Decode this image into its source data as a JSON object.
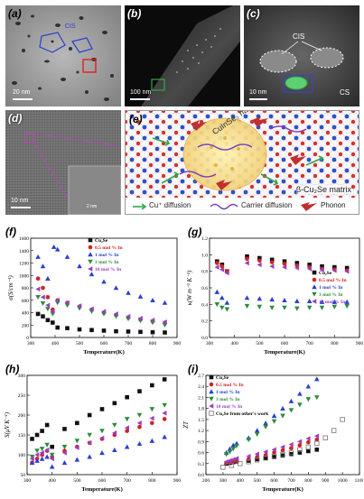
{
  "panels": {
    "a": {
      "label": "(a)",
      "scale": "20 nm",
      "region_label": "CIS"
    },
    "b": {
      "label": "(b)",
      "scale": "100 nm"
    },
    "c": {
      "label": "(c)",
      "scale": "10 nm",
      "labels": [
        "CIS",
        "CS"
      ]
    },
    "d": {
      "label": "(d)",
      "scale": "10 nm",
      "inset_scale": "2 nm"
    },
    "e": {
      "label": "(e)",
      "nanocrystal_label": "CuInSe₂ nanocrystal",
      "matrix_label": "β-Cu₂Se matrix",
      "legend": {
        "cu": "Cu⁺ diffusion",
        "carrier": "Carrier diffusion",
        "phonon": "Phonon"
      }
    },
    "f": {
      "label": "(f)"
    },
    "g": {
      "label": "(g)"
    },
    "h": {
      "label": "(h)"
    },
    "i": {
      "label": "(i)"
    }
  },
  "colors": {
    "cu2se": "#111111",
    "in05": "#d62020",
    "in1": "#2a3fd0",
    "in3": "#2e8b3e",
    "in10": "#9a3fc0",
    "other": "#777777"
  },
  "chart_data": [
    {
      "id": "f",
      "type": "scatter",
      "ylabel": "σ(S/cm⁻¹)",
      "xlabel": "Temperature(K)",
      "xlim": [
        300,
        900
      ],
      "ylim": [
        0,
        1600
      ],
      "xticks": [
        300,
        400,
        500,
        600,
        700,
        800,
        900
      ],
      "yticks": [
        0,
        200,
        400,
        600,
        800,
        1000,
        1200,
        1400,
        1600
      ],
      "legend_position": "top-right",
      "series": [
        {
          "name": "Cu₂Se",
          "key": "cu2se",
          "marker": "square",
          "x": [
            330,
            350,
            370,
            390,
            410,
            450,
            500,
            550,
            600,
            650,
            700,
            750,
            800,
            850
          ],
          "y": [
            380,
            340,
            280,
            240,
            160,
            150,
            130,
            120,
            110,
            100,
            95,
            90,
            85,
            80
          ]
        },
        {
          "name": "0.5 mol % In",
          "key": "in05",
          "marker": "circle",
          "x": [
            330,
            350,
            370,
            390,
            410,
            450,
            500,
            550,
            600,
            650,
            700,
            750,
            800,
            850
          ],
          "y": [
            950,
            800,
            650,
            450,
            600,
            560,
            500,
            450,
            400,
            360,
            320,
            290,
            260,
            240
          ]
        },
        {
          "name": "1 mol % In",
          "key": "in1",
          "marker": "triangle-up",
          "x": [
            330,
            350,
            370,
            395,
            410,
            450,
            500,
            550,
            600,
            650,
            700,
            750,
            800,
            850
          ],
          "y": [
            1300,
            1150,
            950,
            1460,
            1420,
            1300,
            1150,
            1020,
            900,
            800,
            720,
            660,
            600,
            560
          ]
        },
        {
          "name": "3 mol % In",
          "key": "in3",
          "marker": "triangle-down",
          "x": [
            330,
            350,
            370,
            390,
            410,
            450,
            500,
            550,
            600,
            650,
            700,
            750,
            800,
            850
          ],
          "y": [
            650,
            550,
            460,
            380,
            560,
            520,
            470,
            420,
            380,
            340,
            300,
            270,
            240,
            200
          ]
        },
        {
          "name": "10 mol % In",
          "key": "in10",
          "marker": "triangle-left",
          "x": [
            330,
            350,
            370,
            390,
            410,
            450,
            500,
            550,
            600,
            650,
            700,
            750,
            800,
            850
          ],
          "y": [
            780,
            650,
            520,
            420,
            600,
            560,
            510,
            460,
            420,
            380,
            340,
            310,
            280,
            250
          ]
        }
      ]
    },
    {
      "id": "g",
      "type": "scatter",
      "ylabel": "κ(W m⁻¹ K⁻¹)",
      "xlabel": "Temperature(K)",
      "xlim": [
        300,
        900
      ],
      "ylim": [
        0,
        1.2
      ],
      "xticks": [
        300,
        400,
        500,
        600,
        700,
        800,
        900
      ],
      "yticks": [
        0.0,
        0.2,
        0.4,
        0.6,
        0.8,
        1.0,
        1.2
      ],
      "legend_position": "right",
      "series": [
        {
          "name": "Cu₂Se",
          "key": "cu2se",
          "marker": "square",
          "x": [
            330,
            350,
            370,
            450,
            500,
            550,
            600,
            650,
            700,
            750,
            800,
            850
          ],
          "y": [
            0.92,
            0.88,
            0.8,
            0.98,
            0.96,
            0.94,
            0.92,
            0.9,
            0.88,
            0.86,
            0.85,
            0.84
          ]
        },
        {
          "name": "0.5 mol % In",
          "key": "in05",
          "marker": "circle",
          "x": [
            330,
            350,
            370,
            450,
            500,
            550,
            600,
            650,
            700,
            750,
            800,
            850
          ],
          "y": [
            0.9,
            0.86,
            0.8,
            0.95,
            0.93,
            0.91,
            0.89,
            0.87,
            0.85,
            0.83,
            0.82,
            0.81
          ]
        },
        {
          "name": "1 mol % In",
          "key": "in1",
          "marker": "triangle-up",
          "x": [
            330,
            350,
            370,
            450,
            500,
            550,
            600,
            650,
            700,
            750,
            800,
            850
          ],
          "y": [
            0.55,
            0.48,
            0.42,
            0.48,
            0.47,
            0.46,
            0.45,
            0.44,
            0.44,
            0.43,
            0.43,
            0.43
          ]
        },
        {
          "name": "3 mol % In",
          "key": "in3",
          "marker": "triangle-down",
          "x": [
            330,
            350,
            370,
            450,
            500,
            550,
            600,
            650,
            700,
            750,
            800,
            850
          ],
          "y": [
            0.4,
            0.36,
            0.34,
            0.38,
            0.37,
            0.36,
            0.36,
            0.35,
            0.36,
            0.36,
            0.37,
            0.38
          ]
        },
        {
          "name": "10 mol % In",
          "key": "in10",
          "marker": "triangle-left",
          "x": [
            330,
            350,
            370,
            450,
            500,
            550,
            600,
            650,
            700,
            750,
            800,
            850
          ],
          "y": [
            0.85,
            0.82,
            0.78,
            0.9,
            0.88,
            0.86,
            0.85,
            0.84,
            0.83,
            0.82,
            0.81,
            0.8
          ]
        }
      ]
    },
    {
      "id": "h",
      "type": "scatter",
      "ylabel": "S(μV K⁻¹)",
      "xlabel": "Temperature(K)",
      "xlim": [
        300,
        900
      ],
      "ylim": [
        50,
        300
      ],
      "xticks": [
        300,
        400,
        500,
        600,
        700,
        800,
        900
      ],
      "yticks": [
        50,
        100,
        150,
        200,
        250,
        300
      ],
      "series": [
        {
          "name": "Cu₂Se",
          "key": "cu2se",
          "marker": "square",
          "x": [
            320,
            340,
            360,
            380,
            400,
            450,
            500,
            550,
            600,
            650,
            700,
            750,
            800,
            850
          ],
          "y": [
            140,
            150,
            160,
            175,
            120,
            165,
            180,
            200,
            215,
            230,
            245,
            260,
            275,
            290
          ]
        },
        {
          "name": "0.5 mol % In",
          "key": "in05",
          "marker": "circle",
          "x": [
            320,
            340,
            360,
            380,
            400,
            450,
            500,
            550,
            600,
            650,
            700,
            750,
            800,
            850
          ],
          "y": [
            80,
            90,
            100,
            110,
            95,
            110,
            120,
            130,
            140,
            150,
            160,
            170,
            180,
            190
          ]
        },
        {
          "name": "1 mol % In",
          "key": "in1",
          "marker": "triangle-up",
          "x": [
            320,
            340,
            360,
            380,
            400,
            450,
            500,
            550,
            600,
            650,
            700,
            750,
            800,
            850
          ],
          "y": [
            80,
            85,
            90,
            95,
            70,
            80,
            88,
            95,
            105,
            112,
            120,
            128,
            135,
            145
          ]
        },
        {
          "name": "3 mol % In",
          "key": "in3",
          "marker": "triangle-down",
          "x": [
            320,
            340,
            360,
            380,
            400,
            450,
            500,
            550,
            600,
            650,
            700,
            750,
            800,
            850
          ],
          "y": [
            95,
            110,
            115,
            125,
            100,
            120,
            135,
            150,
            160,
            175,
            190,
            200,
            215,
            225
          ]
        },
        {
          "name": "10 mol % In",
          "key": "in10",
          "marker": "triangle-left",
          "x": [
            320,
            340,
            360,
            380,
            400,
            450,
            500,
            550,
            600,
            650,
            700,
            750,
            800,
            850
          ],
          "y": [
            90,
            100,
            105,
            112,
            90,
            105,
            118,
            130,
            142,
            155,
            168,
            180,
            192,
            205
          ]
        }
      ]
    },
    {
      "id": "i",
      "type": "scatter",
      "ylabel": "ZT",
      "xlabel": "Temperature(K)",
      "xlim": [
        200,
        1100
      ],
      "ylim": [
        0,
        2.7
      ],
      "xticks": [
        200,
        300,
        400,
        500,
        600,
        700,
        800,
        900,
        1000,
        1100
      ],
      "yticks": [
        0.0,
        0.3,
        0.6,
        0.9,
        1.2,
        1.5,
        1.8,
        2.1,
        2.4,
        2.7
      ],
      "legend_position": "top-left",
      "series": [
        {
          "name": "Cu₂Se",
          "key": "cu2se",
          "marker": "square",
          "x": [
            320,
            340,
            360,
            380,
            450,
            500,
            550,
            600,
            650,
            700,
            750,
            800,
            850
          ],
          "y": [
            0.3,
            0.32,
            0.34,
            0.36,
            0.38,
            0.42,
            0.45,
            0.48,
            0.52,
            0.56,
            0.6,
            0.64,
            0.68
          ]
        },
        {
          "name": "0.5 mol % In",
          "key": "in05",
          "marker": "circle",
          "x": [
            320,
            340,
            360,
            380,
            450,
            500,
            550,
            600,
            650,
            700,
            750,
            800,
            850
          ],
          "y": [
            0.32,
            0.34,
            0.36,
            0.38,
            0.42,
            0.48,
            0.53,
            0.6,
            0.66,
            0.72,
            0.8,
            0.88,
            0.95
          ]
        },
        {
          "name": "1 mol % In",
          "key": "in1",
          "marker": "triangle-up",
          "x": [
            320,
            340,
            360,
            380,
            450,
            500,
            550,
            600,
            650,
            700,
            750,
            800,
            850
          ],
          "y": [
            0.6,
            0.7,
            0.8,
            0.85,
            1.0,
            1.2,
            1.4,
            1.6,
            1.8,
            2.0,
            2.2,
            2.4,
            2.6
          ]
        },
        {
          "name": "3 mol % In",
          "key": "in3",
          "marker": "triangle-down",
          "x": [
            320,
            340,
            360,
            380,
            450,
            500,
            550,
            600,
            650,
            700,
            750,
            800,
            850
          ],
          "y": [
            0.55,
            0.62,
            0.7,
            0.78,
            0.95,
            1.1,
            1.3,
            1.45,
            1.6,
            1.75,
            1.9,
            2.05,
            2.1
          ]
        },
        {
          "name": "10 mol % In",
          "key": "in10",
          "marker": "triangle-left",
          "x": [
            320,
            340,
            360,
            380,
            450,
            500,
            550,
            600,
            650,
            700,
            750,
            800,
            850
          ],
          "y": [
            0.35,
            0.38,
            0.41,
            0.44,
            0.5,
            0.56,
            0.62,
            0.68,
            0.75,
            0.82,
            0.9,
            0.98,
            1.05
          ]
        },
        {
          "name": "Cu₂Se from other's work",
          "key": "other",
          "marker": "open-square",
          "x": [
            300,
            350,
            400,
            450,
            500,
            550,
            600,
            650,
            700,
            750,
            800,
            850,
            900,
            950,
            1000
          ],
          "y": [
            0.2,
            0.25,
            0.3,
            0.35,
            0.4,
            0.45,
            0.5,
            0.55,
            0.6,
            0.68,
            0.75,
            0.85,
            1.0,
            1.2,
            1.5
          ]
        }
      ]
    }
  ]
}
